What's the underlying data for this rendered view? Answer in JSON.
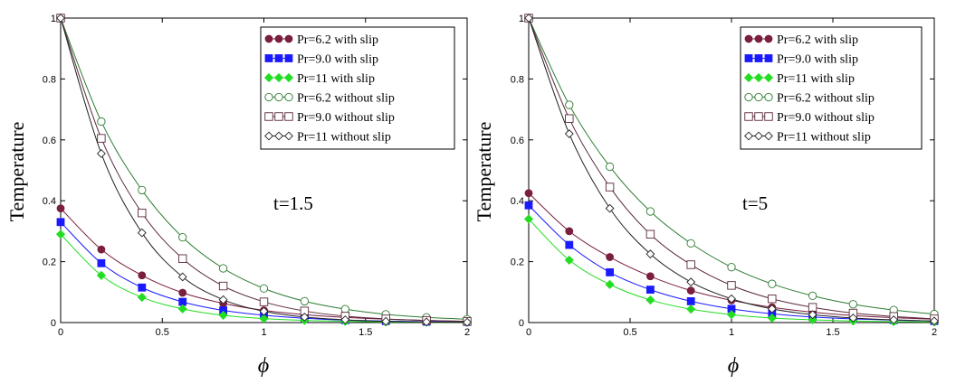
{
  "chart_data": [
    {
      "type": "line",
      "annotation": "t=1.5",
      "xlabel": "ϕ",
      "ylabel": "Temperature",
      "xlim": [
        0,
        2
      ],
      "ylim": [
        0,
        1
      ],
      "xticks": [
        "0",
        "0.5",
        "1",
        "1.5",
        "2"
      ],
      "yticks": [
        "0",
        "0.2",
        "0.4",
        "0.6",
        "0.8",
        "1"
      ],
      "legend": "top-right",
      "series": [
        {
          "name": "Pr=6.2 with slip",
          "marker": "filled-circle",
          "color": "#7a1f3d",
          "x": [
            0,
            0.2,
            0.4,
            0.6,
            0.8,
            1.0,
            1.2,
            1.4,
            1.6,
            1.8,
            2.0
          ],
          "y": [
            0.375,
            0.24,
            0.155,
            0.098,
            0.063,
            0.04,
            0.026,
            0.017,
            0.011,
            0.007,
            0.004
          ]
        },
        {
          "name": "Pr=9.0 with slip",
          "marker": "filled-square",
          "color": "#1a1aff",
          "x": [
            0,
            0.2,
            0.4,
            0.6,
            0.8,
            1.0,
            1.2,
            1.4,
            1.6,
            1.8,
            2.0
          ],
          "y": [
            0.33,
            0.195,
            0.115,
            0.068,
            0.04,
            0.024,
            0.014,
            0.008,
            0.005,
            0.003,
            0.002
          ]
        },
        {
          "name": "Pr=11 with slip",
          "marker": "filled-diamond",
          "color": "#22dd22",
          "x": [
            0,
            0.2,
            0.4,
            0.6,
            0.8,
            1.0,
            1.2,
            1.4,
            1.6,
            1.8,
            2.0
          ],
          "y": [
            0.29,
            0.155,
            0.083,
            0.045,
            0.024,
            0.013,
            0.007,
            0.004,
            0.002,
            0.001,
            0.001
          ]
        },
        {
          "name": "Pr=6.2 without slip",
          "marker": "open-circle",
          "color": "#2e7d32",
          "x": [
            0,
            0.2,
            0.4,
            0.6,
            0.8,
            1.0,
            1.2,
            1.4,
            1.6,
            1.8,
            2.0
          ],
          "y": [
            1.0,
            0.66,
            0.435,
            0.28,
            0.178,
            0.112,
            0.07,
            0.044,
            0.027,
            0.017,
            0.011
          ]
        },
        {
          "name": "Pr=9.0 without slip",
          "marker": "open-square",
          "color": "#5a2a3a",
          "x": [
            0,
            0.2,
            0.4,
            0.6,
            0.8,
            1.0,
            1.2,
            1.4,
            1.6,
            1.8,
            2.0
          ],
          "y": [
            1.0,
            0.605,
            0.36,
            0.21,
            0.12,
            0.068,
            0.038,
            0.021,
            0.012,
            0.007,
            0.004
          ]
        },
        {
          "name": "Pr=11 without slip",
          "marker": "open-diamond",
          "color": "#222222",
          "x": [
            0,
            0.2,
            0.4,
            0.6,
            0.8,
            1.0,
            1.2,
            1.4,
            1.6,
            1.8,
            2.0
          ],
          "y": [
            1.0,
            0.555,
            0.295,
            0.15,
            0.075,
            0.037,
            0.018,
            0.009,
            0.004,
            0.002,
            0.001
          ]
        }
      ]
    },
    {
      "type": "line",
      "annotation": "t=5",
      "xlabel": "ϕ",
      "ylabel": "Temperature",
      "xlim": [
        0,
        2
      ],
      "ylim": [
        0,
        1
      ],
      "xticks": [
        "0",
        "0.5",
        "1",
        "1.5",
        "2"
      ],
      "yticks": [
        "0",
        "0.2",
        "0.4",
        "0.6",
        "0.8",
        "1"
      ],
      "legend": "top-right",
      "series": [
        {
          "name": "Pr=6.2 with slip",
          "marker": "filled-circle",
          "color": "#7a1f3d",
          "x": [
            0,
            0.2,
            0.4,
            0.6,
            0.8,
            1.0,
            1.2,
            1.4,
            1.6,
            1.8,
            2.0
          ],
          "y": [
            0.425,
            0.3,
            0.215,
            0.152,
            0.105,
            0.073,
            0.05,
            0.034,
            0.023,
            0.016,
            0.011
          ]
        },
        {
          "name": "Pr=9.0 with slip",
          "marker": "filled-square",
          "color": "#1a1aff",
          "x": [
            0,
            0.2,
            0.4,
            0.6,
            0.8,
            1.0,
            1.2,
            1.4,
            1.6,
            1.8,
            2.0
          ],
          "y": [
            0.385,
            0.255,
            0.165,
            0.108,
            0.07,
            0.045,
            0.029,
            0.018,
            0.012,
            0.008,
            0.005
          ]
        },
        {
          "name": "Pr=11 with slip",
          "marker": "filled-diamond",
          "color": "#22dd22",
          "x": [
            0,
            0.2,
            0.4,
            0.6,
            0.8,
            1.0,
            1.2,
            1.4,
            1.6,
            1.8,
            2.0
          ],
          "y": [
            0.34,
            0.205,
            0.125,
            0.074,
            0.044,
            0.026,
            0.015,
            0.009,
            0.005,
            0.003,
            0.002
          ]
        },
        {
          "name": "Pr=6.2 without slip",
          "marker": "open-circle",
          "color": "#2e7d32",
          "x": [
            0,
            0.2,
            0.4,
            0.6,
            0.8,
            1.0,
            1.2,
            1.4,
            1.6,
            1.8,
            2.0
          ],
          "y": [
            1.0,
            0.715,
            0.512,
            0.365,
            0.26,
            0.182,
            0.127,
            0.088,
            0.06,
            0.041,
            0.028
          ]
        },
        {
          "name": "Pr=9.0 without slip",
          "marker": "open-square",
          "color": "#5a2a3a",
          "x": [
            0,
            0.2,
            0.4,
            0.6,
            0.8,
            1.0,
            1.2,
            1.4,
            1.6,
            1.8,
            2.0
          ],
          "y": [
            1.0,
            0.67,
            0.445,
            0.29,
            0.19,
            0.122,
            0.078,
            0.05,
            0.031,
            0.02,
            0.012
          ]
        },
        {
          "name": "Pr=11 without slip",
          "marker": "open-diamond",
          "color": "#222222",
          "x": [
            0,
            0.2,
            0.4,
            0.6,
            0.8,
            1.0,
            1.2,
            1.4,
            1.6,
            1.8,
            2.0
          ],
          "y": [
            1.0,
            0.62,
            0.375,
            0.225,
            0.133,
            0.078,
            0.045,
            0.026,
            0.015,
            0.009,
            0.005
          ]
        }
      ]
    }
  ]
}
